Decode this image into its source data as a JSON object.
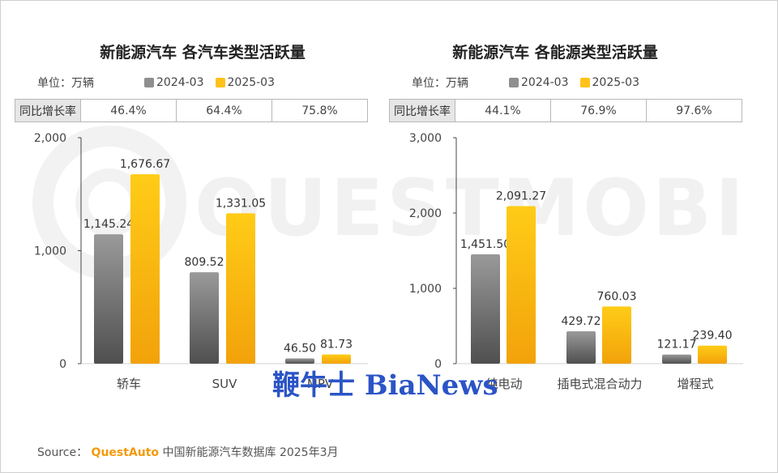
{
  "colors": {
    "y2024": "#8f8f8f",
    "y2025": "#ffc21a",
    "yoy_head_bg": "#e6e6e6",
    "stamp": "#2b54c6",
    "brand": "#f39a0c"
  },
  "watermark_text": "QUESTMOBILE",
  "stamp_text": "鞭牛士 BiaNews",
  "source": {
    "prefix": "Source：",
    "brand": "QuestAuto",
    "rest": "中国新能源汽车数据库 2025年3月"
  },
  "chart_data": [
    {
      "type": "bar",
      "title": "新能源汽车 各汽车类型活跃量",
      "unit_label": "单位：万辆",
      "categories": [
        "轿车",
        "SUV",
        "MPV"
      ],
      "series": [
        {
          "name": "2024-03",
          "values": [
            1145.24,
            809.52,
            46.5
          ],
          "labels": [
            "1,145.24",
            "809.52",
            "46.50"
          ]
        },
        {
          "name": "2025-03",
          "values": [
            1676.67,
            1331.05,
            81.73
          ],
          "labels": [
            "1,676.67",
            "1,331.05",
            "81.73"
          ]
        }
      ],
      "yoy_header": "同比增长率",
      "yoy": [
        "46.4%",
        "64.4%",
        "75.8%"
      ],
      "ylim": [
        0,
        2000
      ],
      "yticks": [
        0,
        1000,
        2000
      ],
      "ytick_labels": [
        "0",
        "1,000",
        "2,000"
      ],
      "legend_position": "top"
    },
    {
      "type": "bar",
      "title": "新能源汽车 各能源类型活跃量",
      "unit_label": "单位：万辆",
      "categories": [
        "纯电动",
        "插电式混合动力",
        "增程式"
      ],
      "series": [
        {
          "name": "2024-03",
          "values": [
            1451.5,
            429.72,
            121.17
          ],
          "labels": [
            "1,451.50",
            "429.72",
            "121.17"
          ]
        },
        {
          "name": "2025-03",
          "values": [
            2091.27,
            760.03,
            239.4
          ],
          "labels": [
            "2,091.27",
            "760.03",
            "239.40"
          ]
        }
      ],
      "yoy_header": "同比增长率",
      "yoy": [
        "44.1%",
        "76.9%",
        "97.6%"
      ],
      "ylim": [
        0,
        3000
      ],
      "yticks": [
        0,
        1000,
        2000,
        3000
      ],
      "ytick_labels": [
        "0",
        "1,000",
        "2,000",
        "3,000"
      ],
      "legend_position": "top"
    }
  ]
}
